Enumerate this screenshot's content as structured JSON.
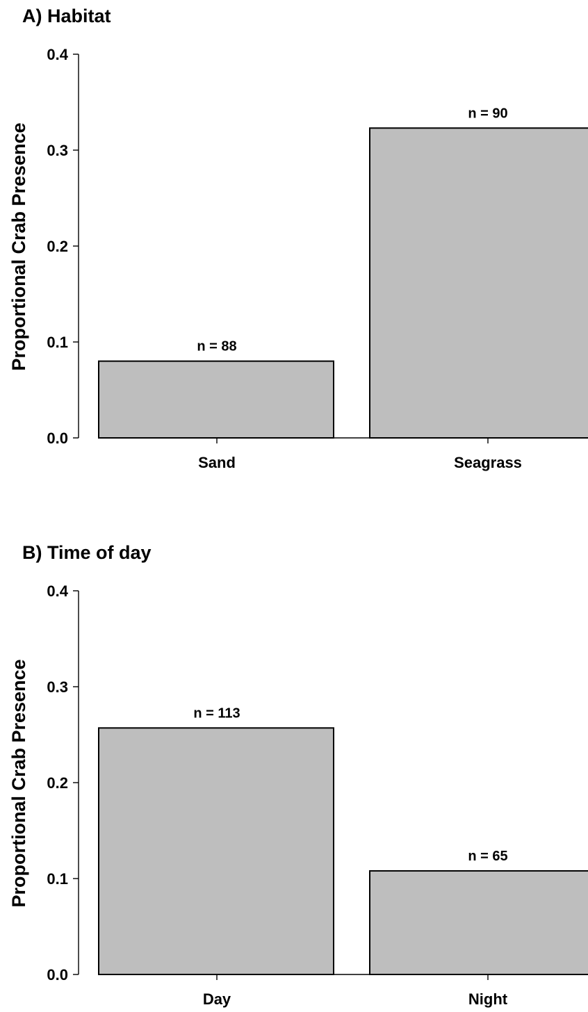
{
  "chart_data": [
    {
      "type": "bar",
      "title": "A) Habitat",
      "xlabel": "",
      "ylabel": "Proportional Crab Presence",
      "categories": [
        "Sand",
        "Seagrass"
      ],
      "values": [
        0.08,
        0.323
      ],
      "bar_labels": [
        "n = 88",
        "n = 90"
      ],
      "ylim": [
        0,
        0.4
      ],
      "yticks": [
        "0.0",
        "0.1",
        "0.2",
        "0.3",
        "0.4"
      ],
      "grid": false,
      "bar_color": "#bebebe"
    },
    {
      "type": "bar",
      "title": "B) Time of day",
      "xlabel": "",
      "ylabel": "Proportional Crab Presence",
      "categories": [
        "Day",
        "Night"
      ],
      "values": [
        0.257,
        0.108
      ],
      "bar_labels": [
        "n = 113",
        "n = 65"
      ],
      "ylim": [
        0,
        0.4
      ],
      "yticks": [
        "0.0",
        "0.1",
        "0.2",
        "0.3",
        "0.4"
      ],
      "grid": false,
      "bar_color": "#bebebe"
    }
  ]
}
